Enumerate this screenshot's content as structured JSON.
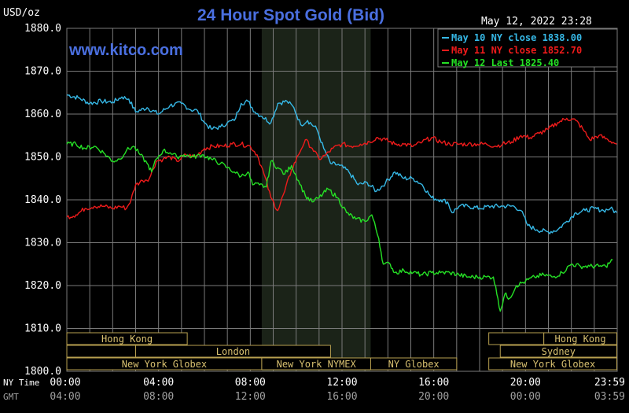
{
  "header": {
    "unit": "USD/oz",
    "title": "24 Hour Spot Gold (Bid)",
    "timestamp": "May 12, 2022 23:28",
    "website": "www.kitco.com"
  },
  "colors": {
    "background": "#000000",
    "grid": "#7a7a7a",
    "session_shade": "#1b2318",
    "title": "#4a6fe0",
    "website": "#4a6fe0",
    "axis_text": "#ffffff",
    "session_text": "#d8c070",
    "session_border": "#b8a050",
    "may10": "#36b8e6",
    "may11": "#ee1b1b",
    "may12": "#25e025"
  },
  "chart_data": {
    "type": "line",
    "title": "24 Hour Spot Gold (Bid)",
    "ylabel": "USD/oz",
    "ylim": [
      1800,
      1880
    ],
    "yticks": [
      "1880.0",
      "1870.0",
      "1860.0",
      "1850.0",
      "1840.0",
      "1830.0",
      "1820.0",
      "1810.0",
      "1800.0"
    ],
    "xlim_hours": [
      0,
      24
    ],
    "x_axis_rows": [
      {
        "label": "NY Time",
        "ticks": [
          "00:00",
          "04:00",
          "08:00",
          "12:00",
          "16:00",
          "20:00",
          "23:59"
        ]
      },
      {
        "label": "GMT",
        "ticks": [
          "04:00",
          "08:00",
          "12:00",
          "16:00",
          "20:00",
          "00:00",
          "03:59"
        ]
      }
    ],
    "legend_position": "top-right",
    "shaded_session_hours": [
      8.5,
      13.25
    ],
    "series": [
      {
        "name": "May 10 NY close 1838.00",
        "key": "may10",
        "points": [
          [
            0,
            1864.5
          ],
          [
            0.5,
            1863.8
          ],
          [
            1.0,
            1862.5
          ],
          [
            1.5,
            1863.0
          ],
          [
            2.0,
            1862.8
          ],
          [
            2.4,
            1864.0
          ],
          [
            2.7,
            1863.5
          ],
          [
            3.0,
            1860.5
          ],
          [
            3.5,
            1861.5
          ],
          [
            4.0,
            1860.0
          ],
          [
            4.5,
            1862.0
          ],
          [
            5.0,
            1862.5
          ],
          [
            5.4,
            1861.0
          ],
          [
            5.7,
            1860.8
          ],
          [
            6.0,
            1858.0
          ],
          [
            6.3,
            1856.5
          ],
          [
            6.7,
            1857.0
          ],
          [
            7.0,
            1858.0
          ],
          [
            7.3,
            1858.5
          ],
          [
            7.6,
            1862.5
          ],
          [
            7.9,
            1863.0
          ],
          [
            8.2,
            1860.5
          ],
          [
            8.5,
            1859.5
          ],
          [
            8.9,
            1858.0
          ],
          [
            9.2,
            1862.5
          ],
          [
            9.6,
            1863.0
          ],
          [
            9.9,
            1861.5
          ],
          [
            10.2,
            1857.5
          ],
          [
            10.5,
            1858.5
          ],
          [
            10.9,
            1856.5
          ],
          [
            11.2,
            1852.0
          ],
          [
            11.5,
            1848.5
          ],
          [
            11.9,
            1848.0
          ],
          [
            12.3,
            1846.5
          ],
          [
            12.7,
            1843.5
          ],
          [
            13.1,
            1844.0
          ],
          [
            13.5,
            1842.0
          ],
          [
            13.9,
            1844.0
          ],
          [
            14.3,
            1846.5
          ],
          [
            14.7,
            1845.0
          ],
          [
            15.1,
            1845.0
          ],
          [
            15.5,
            1843.5
          ],
          [
            15.9,
            1840.5
          ],
          [
            16.3,
            1840.0
          ],
          [
            16.6,
            1839.5
          ],
          [
            16.8,
            1837.0
          ],
          [
            17.1,
            1838.5
          ],
          [
            17.5,
            1838.5
          ],
          [
            18.0,
            1838.0
          ],
          [
            18.5,
            1838.5
          ],
          [
            19.0,
            1838.5
          ],
          [
            19.5,
            1838.5
          ],
          [
            19.8,
            1837.5
          ],
          [
            20.1,
            1834.0
          ],
          [
            20.5,
            1833.0
          ],
          [
            21.0,
            1832.5
          ],
          [
            21.4,
            1833.0
          ],
          [
            21.8,
            1835.0
          ],
          [
            22.2,
            1837.0
          ],
          [
            22.6,
            1837.5
          ],
          [
            23.0,
            1838.0
          ],
          [
            23.4,
            1837.5
          ],
          [
            23.7,
            1838.0
          ],
          [
            23.98,
            1837.0
          ]
        ]
      },
      {
        "name": "May 11 NY close 1852.70",
        "key": "may11",
        "points": [
          [
            0,
            1836.0
          ],
          [
            0.4,
            1836.5
          ],
          [
            0.8,
            1838.0
          ],
          [
            1.2,
            1838.5
          ],
          [
            1.6,
            1838.5
          ],
          [
            2.0,
            1838.0
          ],
          [
            2.3,
            1838.5
          ],
          [
            2.6,
            1838.0
          ],
          [
            2.8,
            1840.0
          ],
          [
            3.0,
            1843.5
          ],
          [
            3.3,
            1844.5
          ],
          [
            3.6,
            1845.0
          ],
          [
            3.9,
            1849.0
          ],
          [
            4.2,
            1849.5
          ],
          [
            4.5,
            1850.0
          ],
          [
            4.8,
            1849.0
          ],
          [
            5.2,
            1850.5
          ],
          [
            5.6,
            1850.0
          ],
          [
            6.0,
            1852.0
          ],
          [
            6.4,
            1852.5
          ],
          [
            6.8,
            1852.5
          ],
          [
            7.2,
            1853.0
          ],
          [
            7.6,
            1853.0
          ],
          [
            8.0,
            1852.5
          ],
          [
            8.3,
            1850.5
          ],
          [
            8.6,
            1846.0
          ],
          [
            8.9,
            1840.5
          ],
          [
            9.2,
            1837.5
          ],
          [
            9.5,
            1842.0
          ],
          [
            9.8,
            1847.0
          ],
          [
            10.1,
            1850.5
          ],
          [
            10.4,
            1854.0
          ],
          [
            10.7,
            1852.0
          ],
          [
            11.0,
            1849.5
          ],
          [
            11.3,
            1850.5
          ],
          [
            11.6,
            1852.0
          ],
          [
            12.0,
            1853.0
          ],
          [
            12.4,
            1852.5
          ],
          [
            12.8,
            1853.0
          ],
          [
            13.2,
            1853.5
          ],
          [
            13.5,
            1854.5
          ],
          [
            13.9,
            1854.0
          ],
          [
            14.3,
            1853.0
          ],
          [
            14.7,
            1853.0
          ],
          [
            15.1,
            1852.5
          ],
          [
            15.5,
            1853.5
          ],
          [
            15.9,
            1854.5
          ],
          [
            16.3,
            1853.5
          ],
          [
            16.7,
            1853.0
          ],
          [
            17.1,
            1853.0
          ],
          [
            17.5,
            1853.0
          ],
          [
            17.9,
            1853.0
          ],
          [
            18.3,
            1853.0
          ],
          [
            18.7,
            1852.5
          ],
          [
            19.0,
            1853.0
          ],
          [
            19.4,
            1853.5
          ],
          [
            19.8,
            1855.0
          ],
          [
            20.2,
            1854.5
          ],
          [
            20.6,
            1855.5
          ],
          [
            21.0,
            1856.5
          ],
          [
            21.4,
            1858.0
          ],
          [
            21.8,
            1859.0
          ],
          [
            22.2,
            1858.5
          ],
          [
            22.5,
            1856.5
          ],
          [
            22.8,
            1854.0
          ],
          [
            23.2,
            1855.0
          ],
          [
            23.6,
            1854.0
          ],
          [
            23.98,
            1853.0
          ]
        ]
      },
      {
        "name": "May 12 Last 1825.40",
        "key": "may12",
        "points": [
          [
            0,
            1853.0
          ],
          [
            0.4,
            1853.0
          ],
          [
            0.8,
            1852.0
          ],
          [
            1.2,
            1852.5
          ],
          [
            1.6,
            1851.0
          ],
          [
            2.0,
            1849.0
          ],
          [
            2.3,
            1849.5
          ],
          [
            2.6,
            1851.5
          ],
          [
            2.9,
            1852.5
          ],
          [
            3.2,
            1850.5
          ],
          [
            3.5,
            1848.5
          ],
          [
            3.7,
            1846.5
          ],
          [
            3.9,
            1849.5
          ],
          [
            4.2,
            1851.5
          ],
          [
            4.5,
            1851.0
          ],
          [
            4.8,
            1850.0
          ],
          [
            5.1,
            1850.5
          ],
          [
            5.5,
            1850.0
          ],
          [
            5.9,
            1850.5
          ],
          [
            6.3,
            1849.5
          ],
          [
            6.7,
            1848.5
          ],
          [
            7.0,
            1847.5
          ],
          [
            7.3,
            1846.5
          ],
          [
            7.6,
            1845.5
          ],
          [
            7.9,
            1846.5
          ],
          [
            8.1,
            1843.5
          ],
          [
            8.4,
            1843.5
          ],
          [
            8.7,
            1843.0
          ],
          [
            8.9,
            1849.0
          ],
          [
            9.2,
            1847.5
          ],
          [
            9.5,
            1846.0
          ],
          [
            9.8,
            1848.0
          ],
          [
            10.1,
            1844.5
          ],
          [
            10.4,
            1841.0
          ],
          [
            10.7,
            1839.5
          ],
          [
            11.0,
            1840.5
          ],
          [
            11.4,
            1842.5
          ],
          [
            11.8,
            1840.5
          ],
          [
            12.2,
            1837.0
          ],
          [
            12.6,
            1835.5
          ],
          [
            13.0,
            1835.0
          ],
          [
            13.3,
            1836.5
          ],
          [
            13.6,
            1831.0
          ],
          [
            13.8,
            1825.0
          ],
          [
            14.1,
            1825.0
          ],
          [
            14.3,
            1823.0
          ],
          [
            14.7,
            1823.5
          ],
          [
            15.1,
            1823.0
          ],
          [
            15.5,
            1822.5
          ],
          [
            15.9,
            1823.0
          ],
          [
            16.3,
            1823.0
          ],
          [
            16.7,
            1823.0
          ],
          [
            17.1,
            1822.5
          ],
          [
            17.5,
            1822.0
          ],
          [
            17.9,
            1822.0
          ],
          [
            18.3,
            1822.0
          ],
          [
            18.6,
            1822.0
          ],
          [
            18.8,
            1817.0
          ],
          [
            18.9,
            1814.0
          ],
          [
            19.1,
            1818.0
          ],
          [
            19.3,
            1817.0
          ],
          [
            19.6,
            1820.0
          ],
          [
            20.0,
            1821.0
          ],
          [
            20.4,
            1822.0
          ],
          [
            20.8,
            1822.5
          ],
          [
            21.2,
            1822.0
          ],
          [
            21.6,
            1823.0
          ],
          [
            22.0,
            1825.0
          ],
          [
            22.4,
            1824.5
          ],
          [
            22.8,
            1824.5
          ],
          [
            23.2,
            1824.5
          ],
          [
            23.5,
            1824.5
          ],
          [
            23.7,
            1825.5
          ],
          [
            23.8,
            1826.0
          ]
        ]
      }
    ],
    "sessions": [
      {
        "label": "Hong Kong",
        "start": 0,
        "end": 5.25,
        "row": 0
      },
      {
        "label": "",
        "start": 18.4,
        "end": 20.8,
        "row": 0
      },
      {
        "label": "Hong Kong",
        "start": 20.8,
        "end": 23.98,
        "row": 0
      },
      {
        "label": "",
        "start": 0,
        "end": 3.0,
        "row": 1
      },
      {
        "label": "London",
        "start": 3.0,
        "end": 11.5,
        "row": 1
      },
      {
        "label": "Sydney",
        "start": 18.9,
        "end": 23.98,
        "row": 1
      },
      {
        "label": "New York Globex",
        "start": 0,
        "end": 8.5,
        "row": 2
      },
      {
        "label": "New York NYMEX",
        "start": 8.5,
        "end": 13.25,
        "row": 2
      },
      {
        "label": "NY Globex",
        "start": 13.25,
        "end": 17.0,
        "row": 2
      },
      {
        "label": "New York Globex",
        "start": 18.4,
        "end": 23.98,
        "row": 2
      }
    ]
  }
}
